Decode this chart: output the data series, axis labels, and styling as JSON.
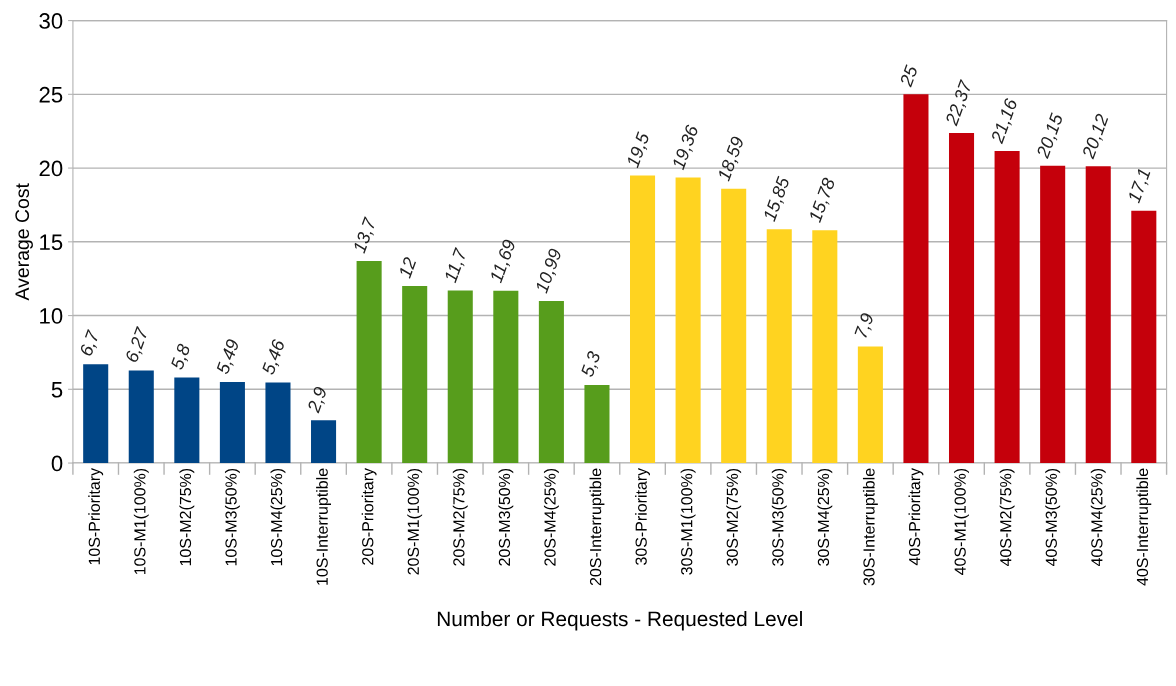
{
  "chart_data": {
    "type": "bar",
    "xlabel": "Number or Requests - Requested Level",
    "ylabel": "Average Cost",
    "categories": [
      "10S-Prioritary",
      "10S-M1(100%)",
      "10S-M2(75%)",
      "10S-M3(50%)",
      "10S-M4(25%)",
      "10S-Interruptible",
      "20S-Prioritary",
      "20S-M1(100%)",
      "20S-M2(75%)",
      "20S-M3(50%)",
      "20S-M4(25%)",
      "20S-Interruptible",
      "30S-Prioritary",
      "30S-M1(100%)",
      "30S-M2(75%)",
      "30S-M3(50%)",
      "30S-M4(25%)",
      "30S-Interruptible",
      "40S-Prioritary",
      "40S-M1(100%)",
      "40S-M2(75%)",
      "40S-M3(50%)",
      "40S-M4(25%)",
      "40S-Interruptible"
    ],
    "values": [
      6.7,
      6.27,
      5.8,
      5.49,
      5.46,
      2.9,
      13.7,
      12,
      11.7,
      11.69,
      10.99,
      5.3,
      19.5,
      19.36,
      18.59,
      15.85,
      15.78,
      7.9,
      25,
      22.37,
      21.16,
      20.15,
      20.12,
      17.1
    ],
    "value_labels": [
      "6,7",
      "6,27",
      "5,8",
      "5,49",
      "5,46",
      "2,9",
      "13,7",
      "12",
      "11,7",
      "11,69",
      "10,99",
      "5,3",
      "19,5",
      "19,36",
      "18,59",
      "15,85",
      "15,78",
      "7,9",
      "25",
      "22,37",
      "21,16",
      "20,15",
      "20,12",
      "17,1"
    ],
    "colors": [
      "#004586",
      "#004586",
      "#004586",
      "#004586",
      "#004586",
      "#004586",
      "#579d1c",
      "#579d1c",
      "#579d1c",
      "#579d1c",
      "#579d1c",
      "#579d1c",
      "#ffd320",
      "#ffd320",
      "#ffd320",
      "#ffd320",
      "#ffd320",
      "#ffd320",
      "#c5000b",
      "#c5000b",
      "#c5000b",
      "#c5000b",
      "#c5000b",
      "#c5000b"
    ],
    "ylim": [
      0,
      30
    ],
    "yticks": [
      0,
      5,
      10,
      15,
      20,
      25,
      30
    ],
    "grid": "y"
  }
}
